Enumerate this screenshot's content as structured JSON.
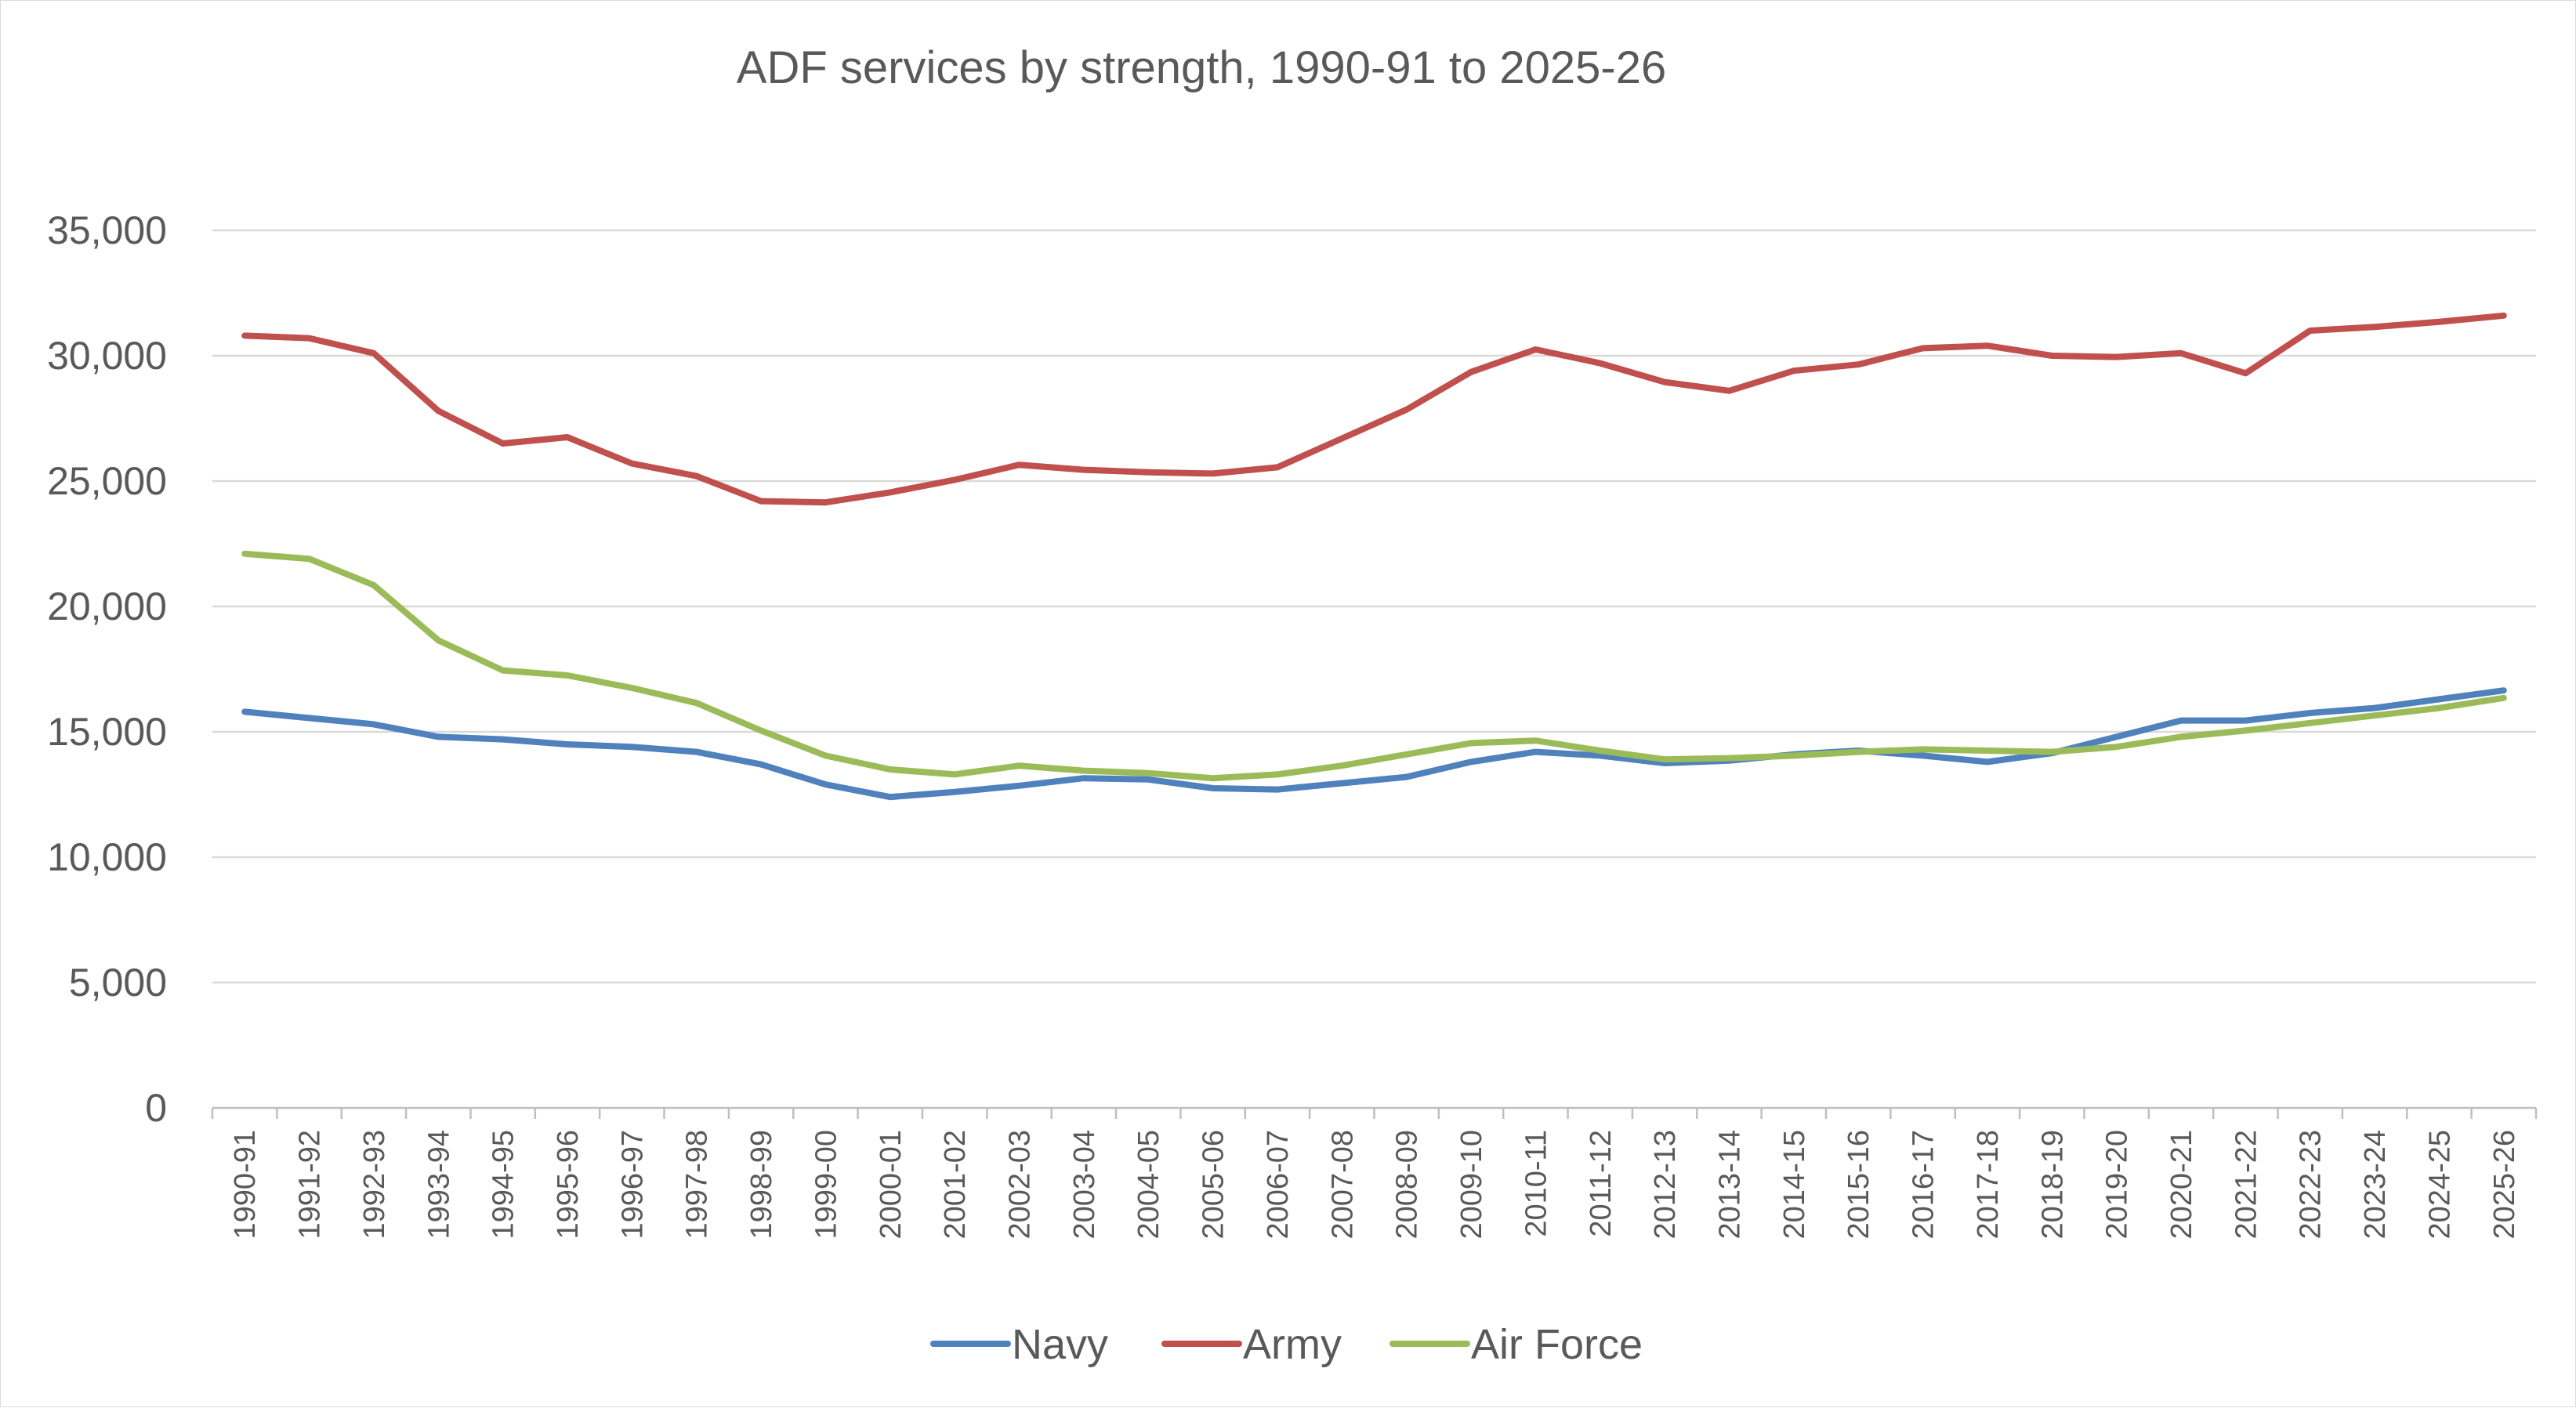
{
  "chart_data": {
    "type": "line",
    "title": "ADF services by strength, 1990-91 to 2025-26",
    "xlabel": "",
    "ylabel": "",
    "ylim": [
      0,
      35000
    ],
    "yticks": [
      0,
      5000,
      10000,
      15000,
      20000,
      25000,
      30000,
      35000
    ],
    "ytick_labels": [
      "0",
      "5,000",
      "10,000",
      "15,000",
      "20,000",
      "25,000",
      "30,000",
      "35,000"
    ],
    "grid": true,
    "legend_position": "bottom",
    "categories": [
      "1990-91",
      "1991-92",
      "1992-93",
      "1993-94",
      "1994-95",
      "1995-96",
      "1996-97",
      "1997-98",
      "1998-99",
      "1999-00",
      "2000-01",
      "2001-02",
      "2002-03",
      "2003-04",
      "2004-05",
      "2005-06",
      "2006-07",
      "2007-08",
      "2008-09",
      "2009-10",
      "2010-11",
      "2011-12",
      "2012-13",
      "2013-14",
      "2014-15",
      "2015-16",
      "2016-17",
      "2017-18",
      "2018-19",
      "2019-20",
      "2020-21",
      "2021-22",
      "2022-23",
      "2023-24",
      "2024-25",
      "2025-26"
    ],
    "series": [
      {
        "name": "Navy",
        "color": "#4f81bd",
        "values": [
          15800,
          15550,
          15300,
          14800,
          14700,
          14500,
          14400,
          14200,
          13700,
          12900,
          12400,
          12600,
          12850,
          13150,
          13100,
          12750,
          12700,
          12950,
          13200,
          13800,
          14200,
          14050,
          13750,
          13850,
          14100,
          14250,
          14050,
          13800,
          14150,
          14800,
          15450,
          15450,
          15750,
          15950,
          16300,
          16650
        ]
      },
      {
        "name": "Army",
        "color": "#c0504d",
        "values": [
          30800,
          30700,
          30100,
          27800,
          26500,
          26750,
          25700,
          25200,
          24200,
          24150,
          24550,
          25050,
          25650,
          25450,
          25350,
          25300,
          25550,
          26700,
          27850,
          29350,
          30250,
          29700,
          28950,
          28600,
          29400,
          29650,
          30300,
          30400,
          30000,
          29950,
          30100,
          29300,
          31000,
          31150,
          31350,
          31600
        ]
      },
      {
        "name": "Air Force",
        "color": "#9bbb59",
        "values": [
          22100,
          21900,
          20850,
          18650,
          17450,
          17250,
          16750,
          16150,
          15050,
          14050,
          13500,
          13300,
          13650,
          13450,
          13350,
          13150,
          13300,
          13650,
          14100,
          14550,
          14650,
          14250,
          13900,
          13950,
          14050,
          14200,
          14300,
          14250,
          14200,
          14400,
          14800,
          15050,
          15350,
          15650,
          15950,
          16350
        ]
      }
    ]
  }
}
